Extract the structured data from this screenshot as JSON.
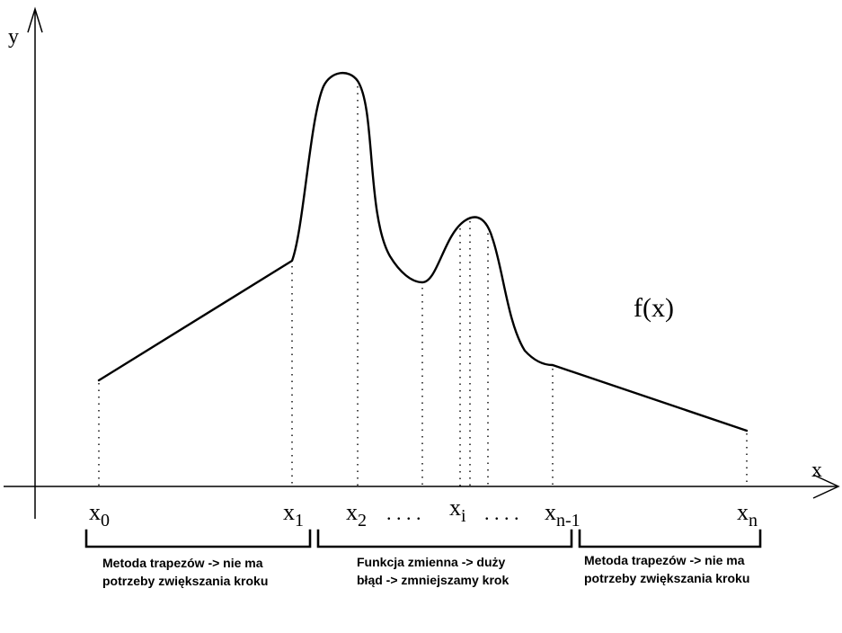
{
  "axes": {
    "x_label": "x",
    "y_label": "y"
  },
  "function_label": "f(x)",
  "points": [
    {
      "id": "x0",
      "base": "x",
      "sub": "0"
    },
    {
      "id": "x1",
      "base": "x",
      "sub": "1"
    },
    {
      "id": "x2",
      "base": "x",
      "sub": "2"
    },
    {
      "id": "xi",
      "base": "x",
      "sub": "i"
    },
    {
      "id": "xn1",
      "base": "x",
      "sub": "n-1"
    },
    {
      "id": "xn",
      "base": "x",
      "sub": "n"
    }
  ],
  "ellipsis_left": ". . . .",
  "ellipsis_right": ". . . .",
  "regions": [
    {
      "line1": "Metoda trapezów -> nie ma",
      "line2": "potrzeby zwiększania kroku"
    },
    {
      "line1": "Funkcja zmienna -> duży",
      "line2": "błąd -> zmniejszamy krok"
    },
    {
      "line1": "Metoda trapezów -> nie ma",
      "line2": "potrzeby zwiększania kroku"
    }
  ]
}
